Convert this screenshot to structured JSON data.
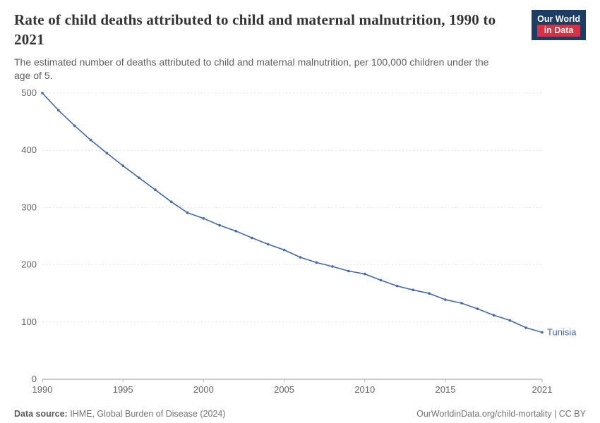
{
  "header": {
    "title": "Rate of child deaths attributed to child and maternal malnutrition, 1990 to 2021",
    "subtitle": "The estimated number of deaths attributed to child and maternal malnutrition, per 100,000 children under the age of 5.",
    "logo": {
      "line1": "Our World",
      "line2": "in Data",
      "bg_color": "#1d3d63",
      "accent_color": "#dc2e45"
    }
  },
  "chart_data": {
    "type": "line",
    "title": "Rate of child deaths attributed to child and maternal malnutrition, 1990 to 2021",
    "xlabel": "",
    "ylabel": "",
    "xlim": [
      1990,
      2021
    ],
    "ylim": [
      0,
      500
    ],
    "xticks": [
      1990,
      1995,
      2000,
      2005,
      2010,
      2015,
      2021
    ],
    "yticks": [
      0,
      100,
      200,
      300,
      400,
      500
    ],
    "grid": true,
    "legend_position": "end-of-line-label",
    "series": [
      {
        "name": "Tunisia",
        "color": "#4569a0",
        "x": [
          1990,
          1991,
          1992,
          1993,
          1994,
          1995,
          1996,
          1997,
          1998,
          1999,
          2000,
          2001,
          2002,
          2003,
          2004,
          2005,
          2006,
          2007,
          2008,
          2009,
          2010,
          2011,
          2012,
          2013,
          2014,
          2015,
          2016,
          2017,
          2018,
          2019,
          2020,
          2021
        ],
        "values": [
          500,
          470,
          443,
          418,
          395,
          373,
          352,
          331,
          310,
          291,
          281,
          269,
          259,
          247,
          236,
          226,
          213,
          204,
          197,
          189,
          184,
          173,
          163,
          156,
          150,
          139,
          133,
          123,
          112,
          103,
          90,
          82
        ]
      }
    ]
  },
  "footer": {
    "source_label": "Data source:",
    "source_text": "IHME, Global Burden of Disease (2024)",
    "attribution": "OurWorldinData.org/child-mortality | CC BY"
  }
}
